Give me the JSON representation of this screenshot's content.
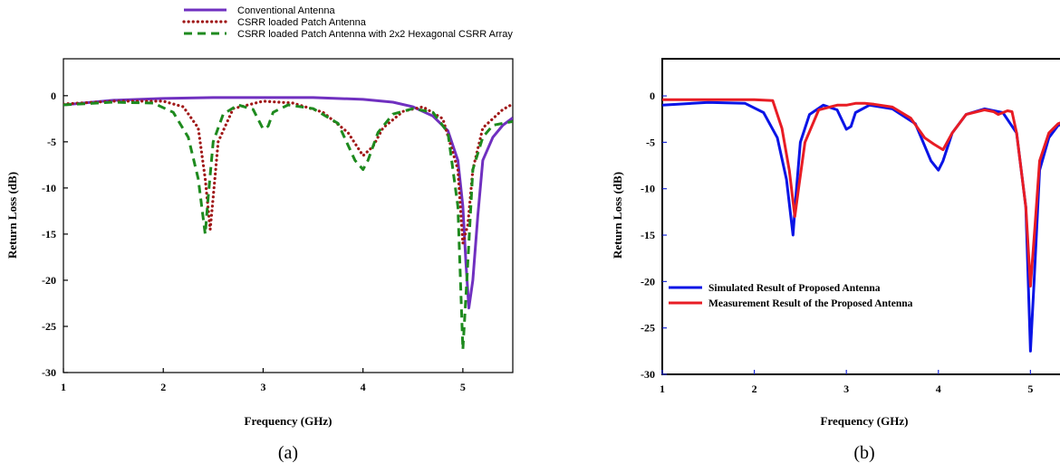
{
  "chart_data": [
    {
      "type": "line",
      "caption": "(a)",
      "xlabel": "Frequency (GHz)",
      "ylabel": "Return Loss (dB)",
      "xlim": [
        1,
        5.5
      ],
      "ylim": [
        -30,
        4
      ],
      "xticks": [
        1,
        2,
        3,
        4,
        5
      ],
      "yticks": [
        0,
        -5,
        -10,
        -15,
        -20,
        -25,
        -30
      ],
      "ytick_labels": [
        "0",
        "-5",
        "-10",
        "-15",
        "-20",
        "-25",
        "-30"
      ],
      "grid": false,
      "legend_position": "top-center",
      "series": [
        {
          "name": "Conventional Antenna",
          "color": "#7030c0",
          "style": "solid",
          "x": [
            1.0,
            1.5,
            2.0,
            2.5,
            3.0,
            3.5,
            4.0,
            4.3,
            4.5,
            4.7,
            4.85,
            4.95,
            5.0,
            5.03,
            5.06,
            5.1,
            5.15,
            5.2,
            5.3,
            5.4,
            5.5
          ],
          "y": [
            -1.0,
            -0.5,
            -0.3,
            -0.2,
            -0.2,
            -0.2,
            -0.4,
            -0.7,
            -1.2,
            -2.2,
            -3.8,
            -7,
            -12,
            -18,
            -23,
            -20,
            -13,
            -7,
            -4.5,
            -3.2,
            -2.4
          ]
        },
        {
          "name": "CSRR loaded Patch Antenna",
          "color": "#a01818",
          "style": "dotted",
          "x": [
            1.0,
            1.5,
            2.0,
            2.2,
            2.35,
            2.42,
            2.47,
            2.5,
            2.55,
            2.7,
            3.0,
            3.3,
            3.6,
            3.85,
            4.0,
            4.1,
            4.2,
            4.4,
            4.6,
            4.8,
            4.95,
            5.0,
            5.05,
            5.1,
            5.2,
            5.4,
            5.5
          ],
          "y": [
            -0.9,
            -0.6,
            -0.6,
            -1.2,
            -3.5,
            -9,
            -14.5,
            -11,
            -5,
            -1.4,
            -0.6,
            -0.8,
            -1.8,
            -4,
            -6.5,
            -5.5,
            -3.5,
            -1.7,
            -1.2,
            -2.5,
            -8,
            -16,
            -14,
            -8,
            -3.5,
            -1.5,
            -0.9
          ]
        },
        {
          "name": "CSRR loaded Patch Antenna with 2x2 Hexagonal CSRR Array",
          "color": "#1e8a1e",
          "style": "dashed",
          "x": [
            1.0,
            1.5,
            1.9,
            2.1,
            2.25,
            2.35,
            2.42,
            2.45,
            2.5,
            2.6,
            2.75,
            2.9,
            3.0,
            3.05,
            3.1,
            3.25,
            3.5,
            3.75,
            3.92,
            4.0,
            4.05,
            4.15,
            4.3,
            4.5,
            4.7,
            4.85,
            4.95,
            5.0,
            5.04,
            5.1,
            5.2,
            5.3,
            5.5
          ],
          "y": [
            -1.0,
            -0.7,
            -0.8,
            -1.8,
            -4.5,
            -9,
            -15,
            -11,
            -5,
            -2,
            -1.0,
            -1.5,
            -3.6,
            -3.3,
            -1.8,
            -1.0,
            -1.4,
            -3,
            -7,
            -8,
            -7,
            -4,
            -2,
            -1.4,
            -1.8,
            -4,
            -12,
            -27.5,
            -20,
            -8,
            -4.5,
            -3.2,
            -2.8
          ]
        }
      ]
    },
    {
      "type": "line",
      "caption": "(b)",
      "xlabel": "Frequency (GHz)",
      "ylabel": "Return Loss (dB)",
      "xlim": [
        1,
        5.4
      ],
      "ylim": [
        -30,
        4
      ],
      "xticks": [
        1,
        2,
        3,
        4,
        5
      ],
      "yticks": [
        0,
        -5,
        -10,
        -15,
        -20,
        -25,
        -30
      ],
      "ytick_labels": [
        "0",
        "-5",
        "-10",
        "-15",
        "-20",
        "-25",
        "-30"
      ],
      "grid": false,
      "legend_position": "lower-left",
      "series": [
        {
          "name": "Simulated  Result of Proposed Antenna",
          "color": "#0a14e6",
          "style": "solid",
          "x": [
            1.0,
            1.5,
            1.9,
            2.1,
            2.25,
            2.35,
            2.42,
            2.45,
            2.5,
            2.6,
            2.75,
            2.9,
            3.0,
            3.05,
            3.1,
            3.25,
            3.5,
            3.75,
            3.92,
            4.0,
            4.05,
            4.15,
            4.3,
            4.5,
            4.7,
            4.85,
            4.95,
            5.0,
            5.04,
            5.1,
            5.2,
            5.3,
            5.4
          ],
          "y": [
            -1.0,
            -0.7,
            -0.8,
            -1.8,
            -4.5,
            -9,
            -15,
            -11,
            -5,
            -2,
            -1.0,
            -1.5,
            -3.6,
            -3.3,
            -1.8,
            -1.0,
            -1.4,
            -3,
            -7,
            -8,
            -7,
            -4,
            -2,
            -1.4,
            -1.8,
            -4,
            -12,
            -27.5,
            -20,
            -8,
            -4.5,
            -3.2,
            -2.8
          ]
        },
        {
          "name": "Measurement Result  of the Proposed Antenna",
          "color": "#e81c24",
          "style": "solid",
          "x": [
            1.0,
            1.5,
            2.0,
            2.2,
            2.3,
            2.38,
            2.44,
            2.48,
            2.55,
            2.7,
            2.9,
            3.0,
            3.1,
            3.2,
            3.3,
            3.5,
            3.7,
            3.85,
            3.95,
            4.05,
            4.15,
            4.3,
            4.5,
            4.6,
            4.65,
            4.75,
            4.8,
            4.85,
            4.95,
            5.0,
            5.05,
            5.1,
            5.2,
            5.3,
            5.4
          ],
          "y": [
            -0.4,
            -0.4,
            -0.4,
            -0.5,
            -3.5,
            -8,
            -13,
            -10,
            -5,
            -1.5,
            -1.0,
            -1.0,
            -0.8,
            -0.8,
            -0.9,
            -1.2,
            -2.4,
            -4.5,
            -5.2,
            -5.8,
            -4,
            -2,
            -1.5,
            -1.7,
            -2,
            -1.6,
            -1.7,
            -4,
            -12,
            -20.5,
            -14,
            -7,
            -4,
            -3,
            -2.6
          ]
        }
      ]
    }
  ]
}
